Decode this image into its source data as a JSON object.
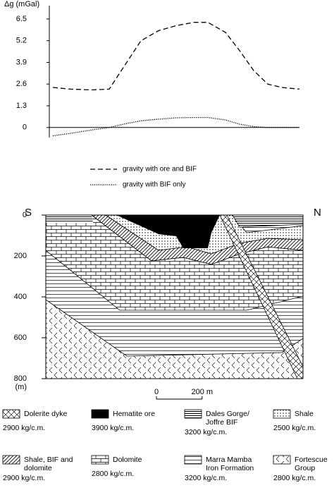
{
  "chart_data": {
    "type": "line",
    "y_label": "Δg (mGal)",
    "x": [
      0,
      77,
      170,
      247,
      309,
      386,
      463,
      540,
      617,
      679,
      756,
      818,
      880,
      941,
      1003,
      1080
    ],
    "xlim": [
      0,
      1080
    ],
    "ylim": [
      -0.6,
      7.3
    ],
    "yticks": [
      0,
      1.3,
      2.6,
      3.9,
      5.2,
      6.5
    ],
    "series": [
      {
        "name": "gravity with ore and BIF",
        "color": "#000000",
        "dash": "dashed",
        "values": [
          2.4,
          2.3,
          2.25,
          2.3,
          3.6,
          5.2,
          5.8,
          6.1,
          6.3,
          6.3,
          5.7,
          4.6,
          3.4,
          2.6,
          2.4,
          2.3
        ]
      },
      {
        "name": "gravity with BIF only",
        "color": "#000000",
        "dash": "dotted",
        "values": [
          -0.5,
          -0.35,
          -0.15,
          0,
          0.2,
          0.4,
          0.5,
          0.58,
          0.6,
          0.6,
          0.45,
          0.2,
          0.05,
          0,
          0,
          0
        ]
      }
    ]
  },
  "section": {
    "left_label": "S",
    "right_label": "N",
    "depth_lim": [
      0,
      800
    ],
    "depth_ticks": [
      0,
      200,
      400,
      600,
      800
    ],
    "depth_unit": "(m)",
    "scale_bar": [
      0,
      {
        "value": 200,
        "label": "200 m"
      }
    ]
  },
  "legend_items": [
    {
      "label_lines": [
        "Dolerite dyke"
      ],
      "density": "2900 kg/c.m."
    },
    {
      "label_lines": [
        "Hematite ore"
      ],
      "density": "3900 kg/c.m."
    },
    {
      "label_lines": [
        "Dales Gorge/",
        "Joffre BIF"
      ],
      "density": "3200 kg/c.m."
    },
    {
      "label_lines": [
        "Shale"
      ],
      "density": "2500 kg/c.m."
    },
    {
      "label_lines": [
        "Shale, BIF and",
        "dolomite"
      ],
      "density": "2900 kg/c.m."
    },
    {
      "label_lines": [
        "Dolomite"
      ],
      "density": "2800 kg/c.m."
    },
    {
      "label_lines": [
        "Marra Mamba",
        "Iron Formation"
      ],
      "density": "3200 kg/c.m."
    },
    {
      "label_lines": [
        "Fortescue",
        "Group"
      ],
      "density": "2800 kg/c.m."
    }
  ]
}
